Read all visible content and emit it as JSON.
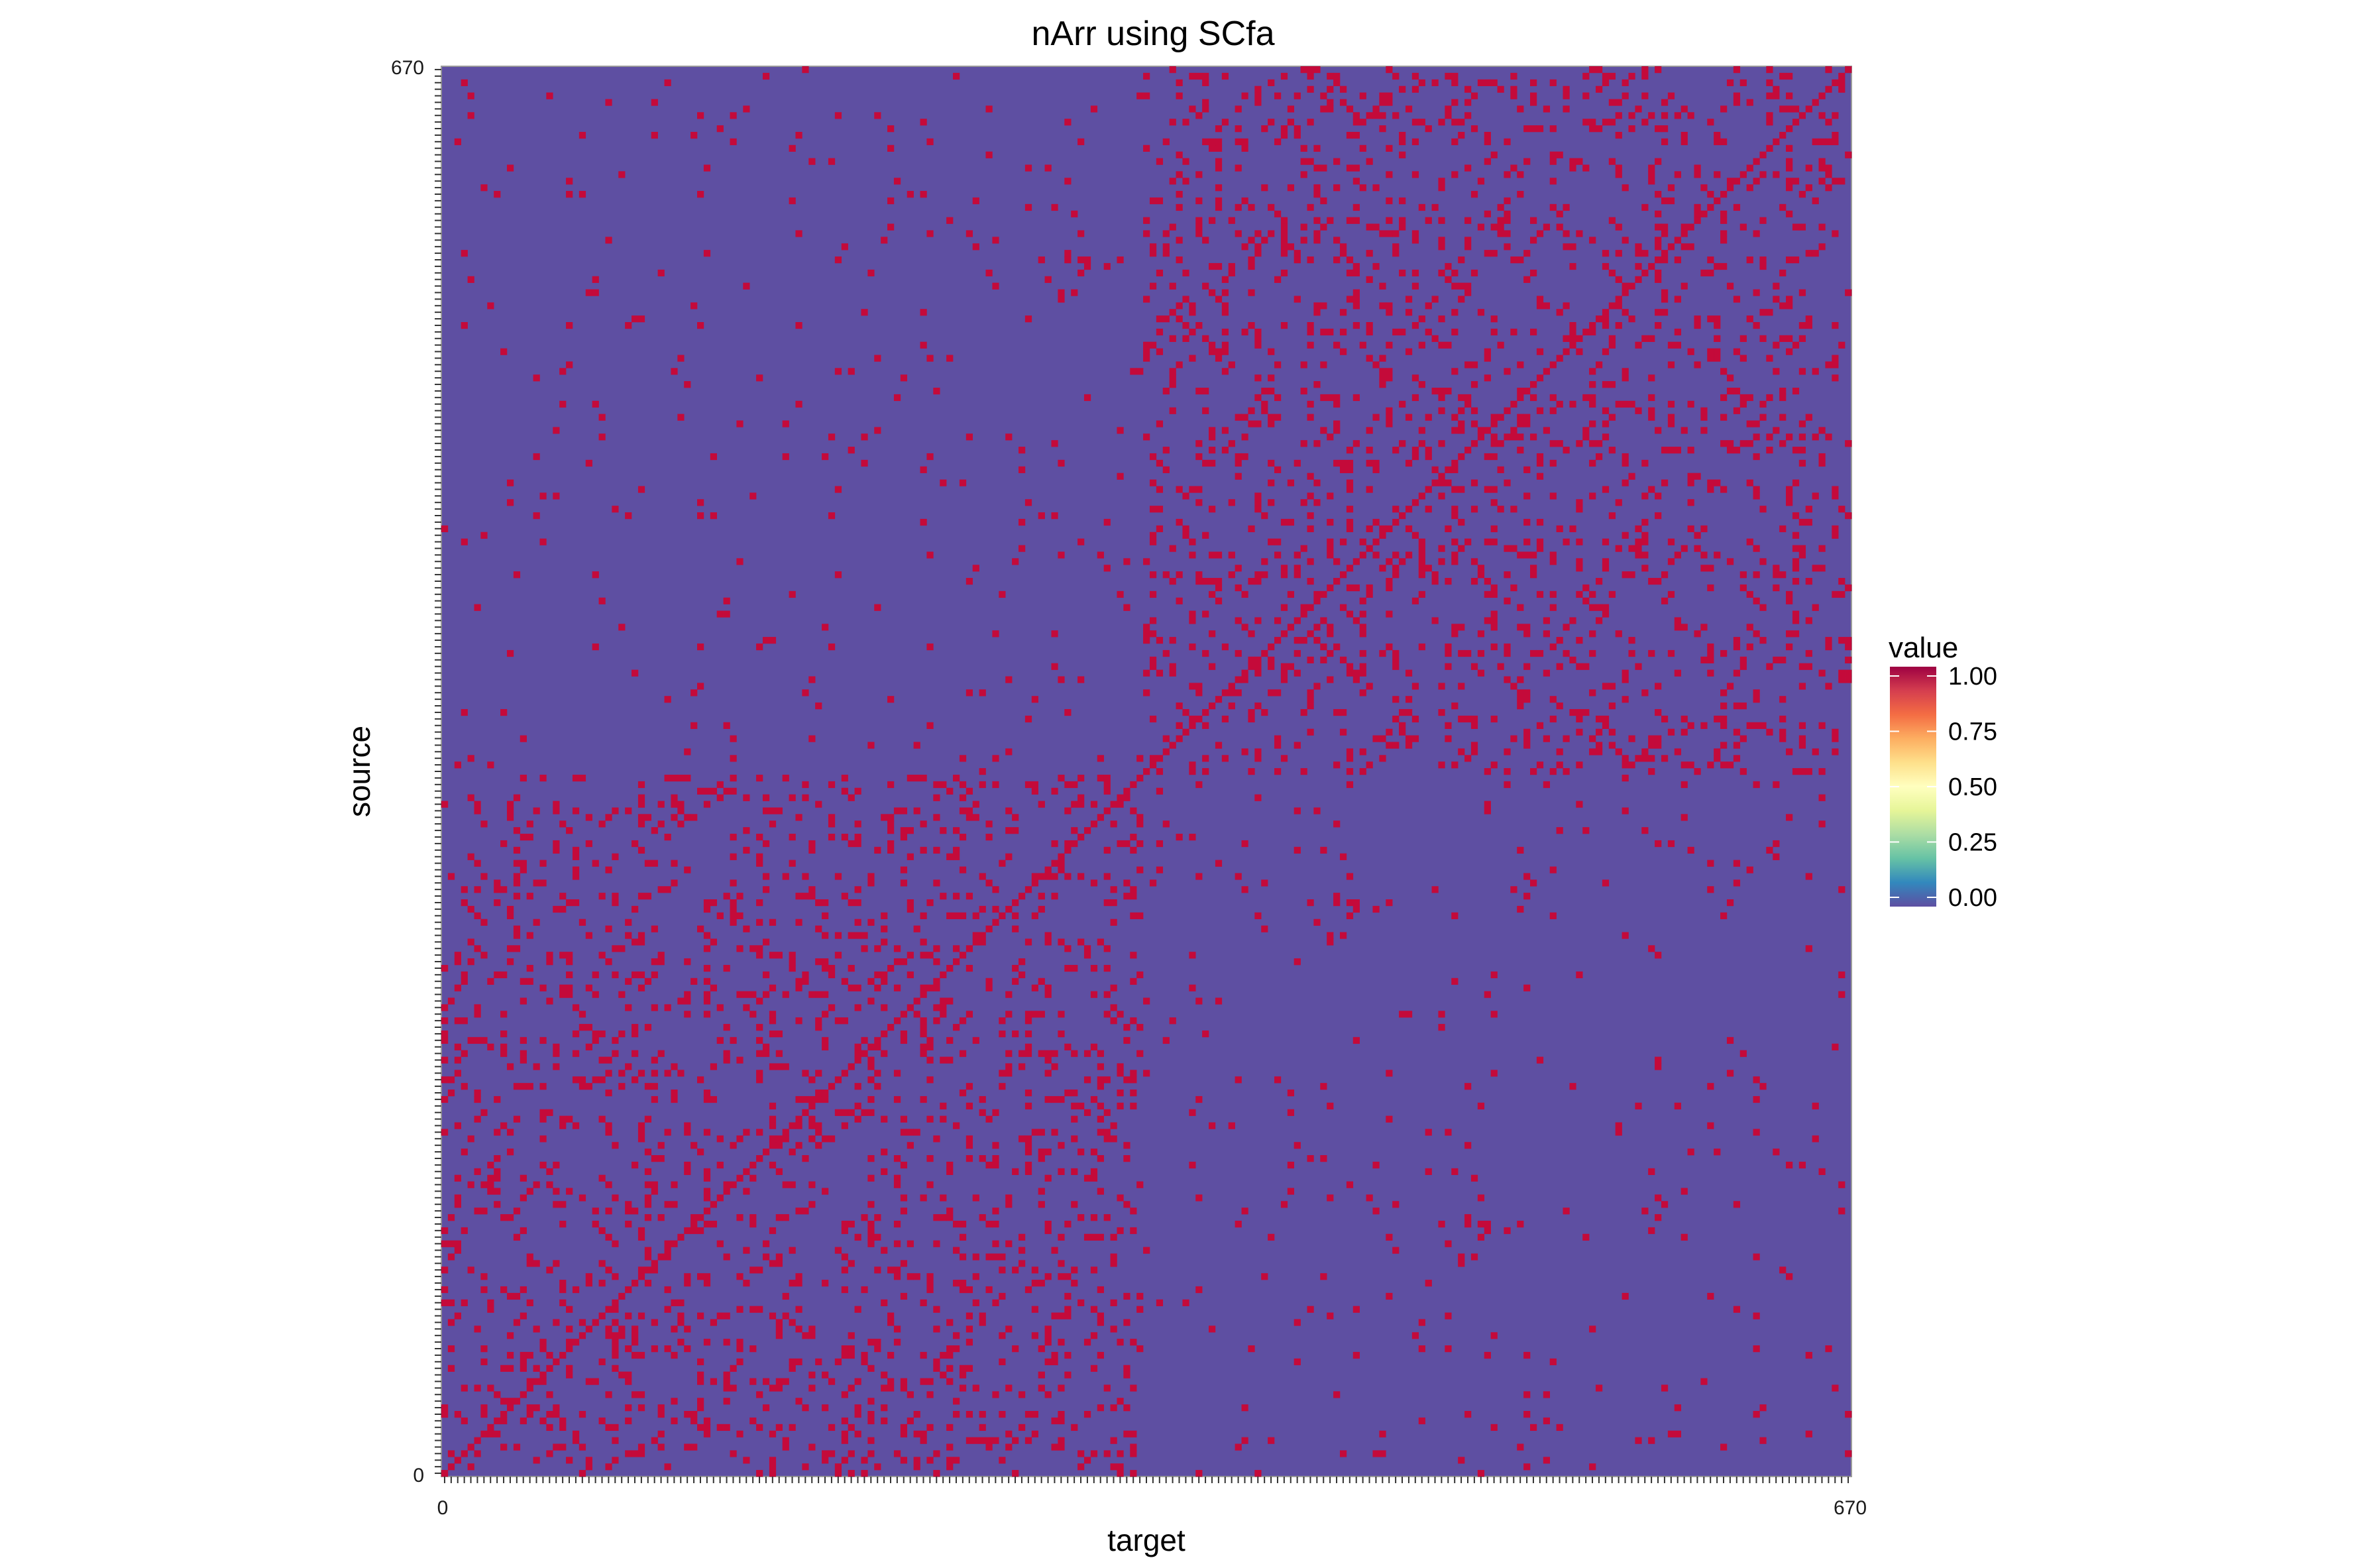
{
  "chart_data": {
    "type": "heatmap",
    "title": "nArr using SCfa",
    "xlabel": "target",
    "ylabel": "source",
    "n_nodes": 215,
    "axis_min_label": "0",
    "axis_max_label": "670",
    "value_range": [
      0,
      1
    ],
    "background_value": 0,
    "cell_value": 1,
    "blocks": [
      {
        "nodes_from": 0,
        "nodes_to": 106,
        "density": 0.14
      },
      {
        "nodes_from": 107,
        "nodes_to": 214,
        "density": 0.14
      },
      {
        "between_blocks_density": 0.02
      }
    ],
    "diagonal_value": 1,
    "legend": {
      "title": "value",
      "ticks": [
        "0.00",
        "0.25",
        "0.50",
        "0.75",
        "1.00"
      ],
      "placement": "right"
    },
    "colors": {
      "low": "#5E4FA2",
      "high": "#C40A3A",
      "gradient": [
        "#5E4FA2",
        "#3288BD",
        "#66C2A5",
        "#ABDDA4",
        "#E6F598",
        "#FFFFBF",
        "#FEE08B",
        "#FDAE61",
        "#F46D43",
        "#D53E4F",
        "#9E0142"
      ]
    }
  }
}
